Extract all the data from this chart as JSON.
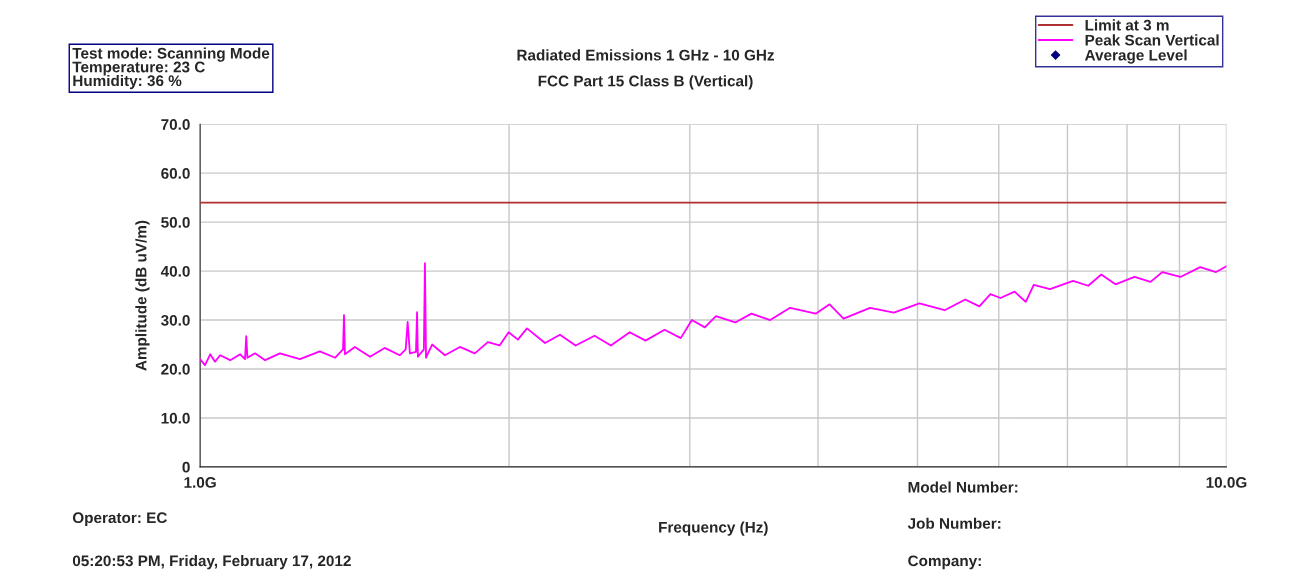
{
  "chart_data": {
    "type": "line",
    "title": "Radiated Emissions 1 GHz - 10 GHz",
    "subtitle": "FCC Part 15 Class B (Vertical)",
    "xlabel": "Frequency (Hz)",
    "ylabel": "Amplitude (dB uV/m)",
    "annotations": [
      "Test mode: Scanning Mode\nTemperature: 23 C\nHumidity: 36 %",
      "Operator: EC",
      "05:20:53 PM, Friday, February 17, 2012",
      "Model Number:",
      "Job Number:",
      "Company:"
    ],
    "log": "x",
    "xlim": [
      1,
      10
    ],
    "xticks": [
      {
        "value": 1,
        "label": "1.0G"
      },
      {
        "value": 2,
        "label": null
      },
      {
        "value": 3,
        "label": null
      },
      {
        "value": 4,
        "label": null
      },
      {
        "value": 5,
        "label": null
      },
      {
        "value": 6,
        "label": null
      },
      {
        "value": 7,
        "label": null
      },
      {
        "value": 8,
        "label": null
      },
      {
        "value": 9,
        "label": null
      },
      {
        "value": 10,
        "label": "10.0G"
      }
    ],
    "ylim": [
      0,
      70
    ],
    "yticks": [
      0,
      {
        "value": 10,
        "label": "10.0"
      },
      {
        "value": 20,
        "label": "20.0"
      },
      {
        "value": 30,
        "label": "30.0"
      },
      {
        "value": 40,
        "label": "40.0"
      },
      {
        "value": 50,
        "label": "50.0"
      },
      {
        "value": 60,
        "label": "60.0"
      },
      {
        "value": 70,
        "label": "70.0"
      }
    ],
    "grid": true,
    "legend": "top right",
    "series": [
      {
        "name": "Limit at 3 m",
        "color": "#b03030",
        "x": [
          1,
          10
        ],
        "values": [
          54,
          54
        ]
      },
      {
        "name": "Peak Scan Vertical",
        "color": "#ff00ff",
        "x": [
          1.0,
          1.011,
          1.023,
          1.034,
          1.046,
          1.07,
          1.094,
          1.106,
          1.109,
          1.112,
          1.131,
          1.157,
          1.196,
          1.251,
          1.308,
          1.354,
          1.378,
          1.381,
          1.384,
          1.415,
          1.464,
          1.513,
          1.565,
          1.586,
          1.593,
          1.601,
          1.623,
          1.627,
          1.63,
          1.652,
          1.656,
          1.66,
          1.683,
          1.732,
          1.791,
          1.852,
          1.907,
          1.958,
          1.998,
          2.04,
          2.082,
          2.168,
          2.242,
          2.322,
          2.423,
          2.513,
          2.622,
          2.716,
          2.835,
          2.94,
          3.014,
          3.103,
          3.181,
          3.322,
          3.445,
          3.593,
          3.757,
          3.979,
          4.105,
          4.236,
          4.495,
          4.742,
          5.022,
          5.313,
          5.565,
          5.744,
          5.889,
          6.023,
          6.217,
          6.374,
          6.49,
          6.73,
          7.089,
          7.333,
          7.552,
          7.795,
          8.136,
          8.433,
          8.663,
          9.019,
          9.428,
          9.77,
          10.0
        ],
        "values": [
          22,
          20.8,
          23,
          21.5,
          22.8,
          21.8,
          23,
          22,
          26.7,
          22.3,
          23.2,
          21.8,
          23.2,
          22,
          23.6,
          22.3,
          24,
          31,
          23,
          24.5,
          22.5,
          24.3,
          22.8,
          24,
          29.6,
          23.2,
          23.5,
          31.6,
          22.5,
          24,
          41.6,
          22.3,
          25,
          22.8,
          24.5,
          23.2,
          25.5,
          24.8,
          27.5,
          26,
          28.3,
          25.3,
          27,
          24.8,
          26.8,
          24.8,
          27.5,
          25.8,
          28,
          26.3,
          30,
          28.5,
          30.8,
          29.5,
          31.3,
          30,
          32.5,
          31.3,
          33.2,
          30.3,
          32.5,
          31.5,
          33.4,
          32,
          34.2,
          32.8,
          35.3,
          34.5,
          35.8,
          33.7,
          37.2,
          36.3,
          38,
          37,
          39.3,
          37.3,
          38.8,
          37.8,
          39.8,
          38.8,
          40.8,
          39.8,
          41
        ]
      },
      {
        "name": "Average Level",
        "type": "scatter",
        "color": "#000080",
        "marker": "diamond"
      }
    ]
  }
}
